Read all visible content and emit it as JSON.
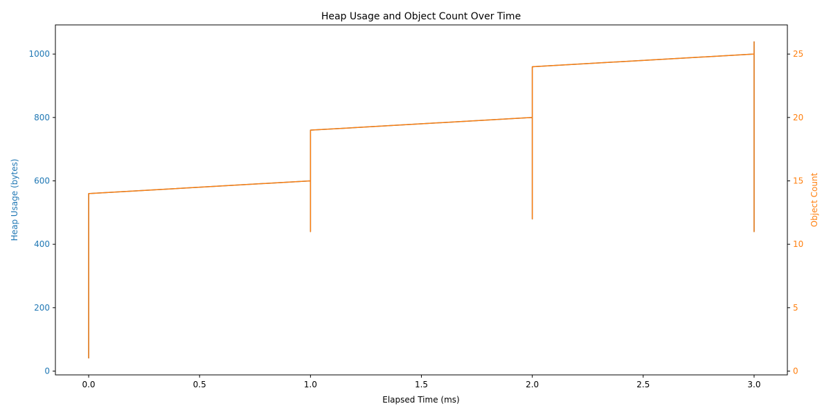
{
  "chart_data": {
    "type": "line",
    "title": "Heap Usage and Object Count Over Time",
    "xlabel": "Elapsed Time (ms)",
    "ylabel_left": "Heap Usage (bytes)",
    "ylabel_right": "Object Count",
    "xlim": [
      -0.15,
      3.15
    ],
    "ylim_left": [
      -12,
      1092
    ],
    "ylim_right": [
      -0.3,
      27.3
    ],
    "x_ticks": [
      0.0,
      0.5,
      1.0,
      1.5,
      2.0,
      2.5,
      3.0
    ],
    "x_tick_labels": [
      "0.0",
      "0.5",
      "1.0",
      "1.5",
      "2.0",
      "2.5",
      "3.0"
    ],
    "y_left_ticks": [
      0,
      200,
      400,
      600,
      800,
      1000
    ],
    "y_left_tick_labels": [
      "0",
      "200",
      "400",
      "600",
      "800",
      "1000"
    ],
    "y_right_ticks": [
      0,
      5,
      10,
      15,
      20,
      25
    ],
    "y_right_tick_labels": [
      "0",
      "5",
      "10",
      "15",
      "20",
      "25"
    ],
    "grid": false,
    "colors": {
      "left_axis": "#1f77b4",
      "right_axis": "#ff7f0e"
    },
    "series": [
      {
        "axis": "left",
        "color": "#1f77b4",
        "x": [
          0,
          0,
          0,
          1,
          1,
          1,
          1,
          2,
          2,
          2,
          2,
          3,
          3,
          3
        ],
        "values": [
          40,
          40,
          560,
          600,
          440,
          640,
          760,
          800,
          480,
          800,
          960,
          1000,
          440,
          1040
        ]
      },
      {
        "axis": "right",
        "color": "#ff7f0e",
        "x": [
          0,
          0,
          0,
          1,
          1,
          1,
          1,
          2,
          2,
          2,
          2,
          3,
          3,
          3
        ],
        "values": [
          1,
          1,
          14,
          15,
          11,
          16,
          19,
          20,
          12,
          20,
          24,
          25,
          11,
          26
        ]
      }
    ]
  }
}
